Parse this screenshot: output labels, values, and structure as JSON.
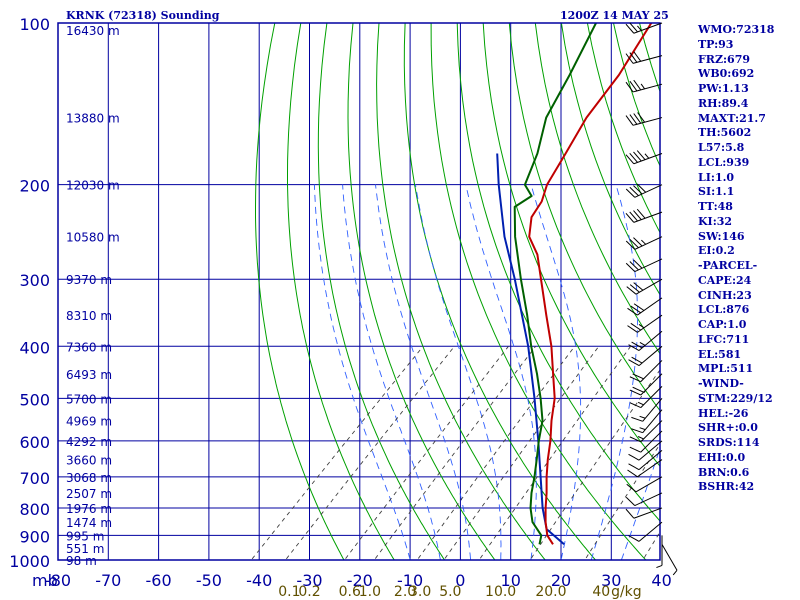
{
  "header": {
    "station": "KRNK (72318) Sounding",
    "time": "1200Z 14 MAY 25"
  },
  "indices": [
    "WMO:72318",
    "TP:93",
    "FRZ:679",
    "WB0:692",
    "PW:1.13",
    "RH:89.4",
    "MAXT:21.7",
    "TH:5602",
    "L57:5.8",
    "LCL:939",
    "LI:1.0",
    "SI:1.1",
    "TT:48",
    "KI:32",
    "SW:146",
    "EI:0.2",
    "-PARCEL-",
    "CAPE:24",
    "CINH:23",
    "LCL:876",
    "CAP:1.0",
    "LFC:711",
    "EL:581",
    "MPL:511",
    "-WIND-",
    "STM:229/12",
    "HEL:-26",
    "SHR+:0.0",
    "SRDS:114",
    "EHI:0.0",
    "BRN:0.6",
    "BSHR:42"
  ],
  "colors": {
    "frame": "#0000a0",
    "grid": "#0000a0",
    "dry_adiabat": "#00a000",
    "moist_adiabat": "#3060ff",
    "mixing_ratio": "#404040",
    "temperature": "#c00000",
    "dewpoint": "#006000",
    "parcel": "#0020b0",
    "wind": "#000000",
    "mixing_ratio_label": "#605000"
  },
  "chart_data": {
    "type": "skew-t",
    "yscale": "log-pressure",
    "ylim": [
      1000,
      100
    ],
    "xlim": [
      -80,
      0
    ],
    "pressure_levels": [
      100,
      200,
      300,
      400,
      500,
      600,
      700,
      800,
      900,
      1000
    ],
    "y_unit_label": "mb",
    "temperature_ticks": [
      -80,
      -70,
      -60,
      -50,
      -40,
      -30,
      -20,
      -10,
      0,
      10,
      20,
      30,
      40
    ],
    "height_labels": [
      {
        "p": 103,
        "label": "16430 m"
      },
      {
        "p": 150,
        "label": "13880 m"
      },
      {
        "p": 200,
        "label": "12030 m"
      },
      {
        "p": 250,
        "label": "10580 m"
      },
      {
        "p": 300,
        "label": "9370 m"
      },
      {
        "p": 350,
        "label": "8310 m"
      },
      {
        "p": 400,
        "label": "7360 m"
      },
      {
        "p": 450,
        "label": "6493 m"
      },
      {
        "p": 500,
        "label": "5700 m"
      },
      {
        "p": 550,
        "label": "4969 m"
      },
      {
        "p": 600,
        "label": "4292 m"
      },
      {
        "p": 650,
        "label": "3660 m"
      },
      {
        "p": 700,
        "label": "3068 m"
      },
      {
        "p": 750,
        "label": "2507 m"
      },
      {
        "p": 800,
        "label": "1976 m"
      },
      {
        "p": 850,
        "label": "1474 m"
      },
      {
        "p": 900,
        "label": "995 m"
      },
      {
        "p": 950,
        "label": "551 m"
      },
      {
        "p": 1000,
        "label": "98 m"
      }
    ],
    "mixing_ratio_labels": [
      "0.1",
      "0.2",
      "0.6",
      "1.0",
      "2.0",
      "3.0",
      "5.0",
      "10.0",
      "20.0",
      "40",
      "g/kg"
    ],
    "mixing_ratio_label_t": [
      -34,
      -30,
      -22,
      -18,
      -11,
      -8,
      -2,
      8,
      18,
      28,
      33
    ],
    "dry_adiabats_theta_k": [
      250,
      260,
      270,
      280,
      290,
      300,
      310,
      320,
      330,
      340,
      350,
      360,
      370,
      380,
      390,
      400,
      410,
      420,
      430,
      440,
      450,
      460,
      470,
      480,
      490,
      500,
      510
    ],
    "moist_adiabats_t1000": [
      -10,
      -4,
      2,
      8,
      14,
      20,
      26,
      32
    ],
    "mixing_ratio_lines": [
      0.1,
      0.2,
      0.6,
      1.0,
      2.0,
      3.0,
      5.0,
      10.0,
      20.0,
      40.0
    ],
    "temperature_profile": [
      {
        "p": 935,
        "t": 15.3
      },
      {
        "p": 900,
        "t": 12.4
      },
      {
        "p": 850,
        "t": 9.4
      },
      {
        "p": 800,
        "t": 6.6
      },
      {
        "p": 750,
        "t": 3.8
      },
      {
        "p": 700,
        "t": 0.6
      },
      {
        "p": 650,
        "t": -2.6
      },
      {
        "p": 600,
        "t": -5.8
      },
      {
        "p": 550,
        "t": -9.6
      },
      {
        "p": 500,
        "t": -13.4
      },
      {
        "p": 450,
        "t": -18.6
      },
      {
        "p": 400,
        "t": -24.4
      },
      {
        "p": 350,
        "t": -31.6
      },
      {
        "p": 300,
        "t": -39.8
      },
      {
        "p": 270,
        "t": -45.4
      },
      {
        "p": 250,
        "t": -50.6
      },
      {
        "p": 230,
        "t": -54.0
      },
      {
        "p": 215,
        "t": -55.1
      },
      {
        "p": 200,
        "t": -57.4
      },
      {
        "p": 175,
        "t": -59.9
      },
      {
        "p": 150,
        "t": -62.9
      },
      {
        "p": 125,
        "t": -64.9
      },
      {
        "p": 100,
        "t": -68.8
      }
    ],
    "dewpoint_profile": [
      {
        "p": 935,
        "t": 12.6
      },
      {
        "p": 900,
        "t": 11.2
      },
      {
        "p": 850,
        "t": 6.8
      },
      {
        "p": 800,
        "t": 3.6
      },
      {
        "p": 750,
        "t": 0.8
      },
      {
        "p": 700,
        "t": -1.8
      },
      {
        "p": 650,
        "t": -4.8
      },
      {
        "p": 600,
        "t": -8.1
      },
      {
        "p": 550,
        "t": -11.4
      },
      {
        "p": 500,
        "t": -16.2
      },
      {
        "p": 450,
        "t": -21.8
      },
      {
        "p": 400,
        "t": -28.4
      },
      {
        "p": 350,
        "t": -35.4
      },
      {
        "p": 300,
        "t": -43.8
      },
      {
        "p": 250,
        "t": -53.4
      },
      {
        "p": 220,
        "t": -59.4
      },
      {
        "p": 210,
        "t": -58.2
      },
      {
        "p": 200,
        "t": -61.8
      },
      {
        "p": 175,
        "t": -65.5
      },
      {
        "p": 150,
        "t": -70.9
      },
      {
        "p": 125,
        "t": -74.7
      },
      {
        "p": 100,
        "t": -79.8
      }
    ],
    "parcel_profile": [
      {
        "p": 935,
        "t": 17.5
      },
      {
        "p": 876,
        "t": 11.0
      },
      {
        "p": 800,
        "t": 6.0
      },
      {
        "p": 700,
        "t": -0.6
      },
      {
        "p": 600,
        "t": -8.2
      },
      {
        "p": 500,
        "t": -17.4
      },
      {
        "p": 400,
        "t": -29.0
      },
      {
        "p": 300,
        "t": -45.0
      },
      {
        "p": 250,
        "t": -55.5
      },
      {
        "p": 200,
        "t": -67.0
      },
      {
        "p": 175,
        "t": -73.5
      }
    ],
    "wind_profile": [
      {
        "p": 100,
        "dir": 250,
        "spd": 25
      },
      {
        "p": 115,
        "dir": 255,
        "spd": 30
      },
      {
        "p": 130,
        "dir": 255,
        "spd": 35
      },
      {
        "p": 150,
        "dir": 255,
        "spd": 40
      },
      {
        "p": 175,
        "dir": 250,
        "spd": 45
      },
      {
        "p": 200,
        "dir": 245,
        "spd": 40
      },
      {
        "p": 225,
        "dir": 250,
        "spd": 40
      },
      {
        "p": 250,
        "dir": 245,
        "spd": 35
      },
      {
        "p": 275,
        "dir": 245,
        "spd": 30
      },
      {
        "p": 300,
        "dir": 240,
        "spd": 30
      },
      {
        "p": 325,
        "dir": 235,
        "spd": 30
      },
      {
        "p": 350,
        "dir": 235,
        "spd": 25
      },
      {
        "p": 375,
        "dir": 230,
        "spd": 25
      },
      {
        "p": 400,
        "dir": 230,
        "spd": 20
      },
      {
        "p": 425,
        "dir": 225,
        "spd": 20
      },
      {
        "p": 450,
        "dir": 225,
        "spd": 20
      },
      {
        "p": 475,
        "dir": 225,
        "spd": 15
      },
      {
        "p": 500,
        "dir": 220,
        "spd": 15
      },
      {
        "p": 525,
        "dir": 220,
        "spd": 15
      },
      {
        "p": 550,
        "dir": 225,
        "spd": 15
      },
      {
        "p": 575,
        "dir": 225,
        "spd": 10
      },
      {
        "p": 600,
        "dir": 230,
        "spd": 10
      },
      {
        "p": 625,
        "dir": 230,
        "spd": 10
      },
      {
        "p": 650,
        "dir": 235,
        "spd": 10
      },
      {
        "p": 700,
        "dir": 240,
        "spd": 10
      },
      {
        "p": 750,
        "dir": 245,
        "spd": 10
      },
      {
        "p": 800,
        "dir": 250,
        "spd": 10
      },
      {
        "p": 850,
        "dir": 230,
        "spd": 10
      },
      {
        "p": 900,
        "dir": 180,
        "spd": 5
      },
      {
        "p": 935,
        "dir": 150,
        "spd": 5
      }
    ]
  }
}
